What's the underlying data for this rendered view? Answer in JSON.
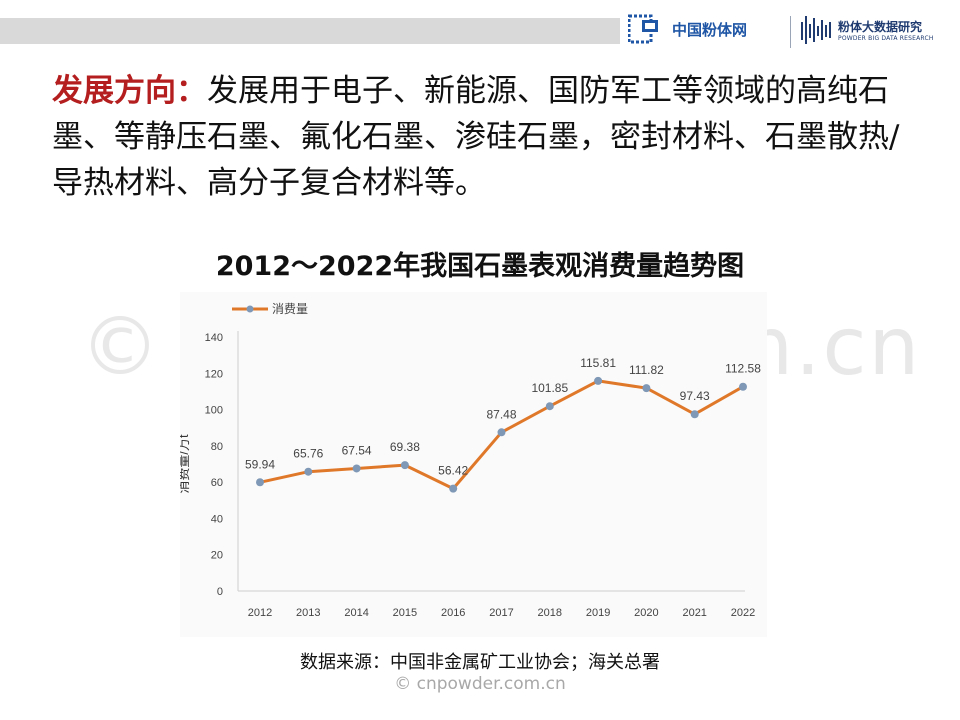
{
  "branding": {
    "logo1_text": "中国粉体网",
    "logo2_cn": "粉体大数据研究",
    "logo2_en": "POWDER BIG DATA RESEARCH"
  },
  "headline": {
    "lead": "发展方向：",
    "body": "发展用于电子、新能源、国防军工等领域的高纯石墨、等静压石墨、氟化石墨、渗硅石墨，密封材料、石墨散热/导热材料、高分子复合材料等。"
  },
  "chart_title": "2012～2022年我国石墨表观消费量趋势图",
  "source": "数据来源：中国非金属矿工业协会；海关总署",
  "watermark": "© cnpowder.com.cn",
  "watermark_bottom": "© cnpowder.com.cn",
  "colors": {
    "line": "#e0782a",
    "marker": "#7f98b6",
    "accent_red": "#b41e1e",
    "brand_blue": "#1f56a5"
  },
  "chart_data": {
    "type": "line",
    "categories": [
      "2012",
      "2013",
      "2014",
      "2015",
      "2016",
      "2017",
      "2018",
      "2019",
      "2020",
      "2021",
      "2022"
    ],
    "series": [
      {
        "name": "消费量",
        "values": [
          59.94,
          65.76,
          67.54,
          69.38,
          56.42,
          87.48,
          101.85,
          115.81,
          111.82,
          97.43,
          112.58
        ]
      }
    ],
    "data_labels": [
      "59.94",
      "65.76",
      "67.54",
      "69.38",
      "56.42",
      "87.48",
      "101.85",
      "115.81",
      "111.82",
      "97.43",
      "112.58"
    ],
    "ylabel": "消费量/万t",
    "ylim": [
      0,
      140
    ],
    "yticks": [
      0,
      20,
      40,
      60,
      80,
      100,
      120,
      140
    ],
    "legend_position": "top-left",
    "grid": false
  }
}
